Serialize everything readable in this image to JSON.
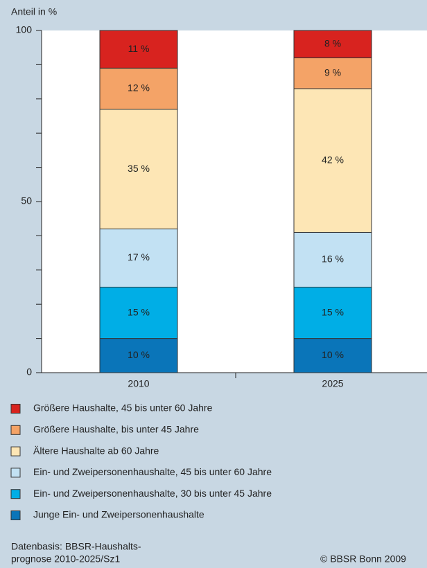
{
  "chart_data": {
    "type": "stacked_bar",
    "y_axis_label": "Anteil in %",
    "categories": [
      "2010",
      "2025"
    ],
    "series": [
      {
        "name": "Junge Ein- und Zweipersonenhaushalte",
        "color": "#0a75b9",
        "values": [
          10,
          10
        ],
        "value_labels": [
          "10 %",
          "10 %"
        ]
      },
      {
        "name": "Ein- und Zweipersonenhaushalte, 30 bis unter 45 Jahre",
        "color": "#00aee6",
        "values": [
          15,
          15
        ],
        "value_labels": [
          "15 %",
          "15 %"
        ]
      },
      {
        "name": "Ein- und Zweipersonenhaushalte, 45 bis unter 60 Jahre",
        "color": "#c2e1f3",
        "values": [
          17,
          16
        ],
        "value_labels": [
          "17 %",
          "16 %"
        ]
      },
      {
        "name": "Ältere Haushalte ab 60 Jahre",
        "color": "#fde6b5",
        "values": [
          35,
          42
        ],
        "value_labels": [
          "35 %",
          "42 %"
        ]
      },
      {
        "name": "Größere Haushalte, bis unter 45 Jahre",
        "color": "#f4a367",
        "values": [
          12,
          9
        ],
        "value_labels": [
          "12 %",
          "9 %"
        ]
      },
      {
        "name": "Größere Haushalte, 45 bis unter 60 Jahre",
        "color": "#d8231f",
        "values": [
          11,
          8
        ],
        "value_labels": [
          "11 %",
          "8 %"
        ]
      }
    ],
    "ylim": [
      0,
      100
    ],
    "yticks": [
      0,
      50,
      100
    ],
    "minor_yticks": [
      10,
      20,
      30,
      40,
      60,
      70,
      80,
      90
    ],
    "source": [
      "Datenbasis: BBSR-Haushalts-",
      "prognose 2010-2025/Sz1"
    ],
    "copyright": "©  BBSR Bonn 2009"
  }
}
